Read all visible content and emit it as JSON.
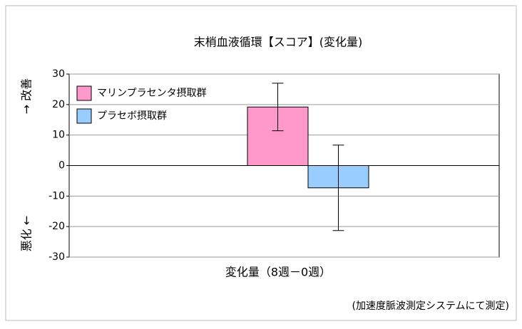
{
  "chart_data": {
    "type": "bar",
    "title": "末梢血液循環【スコア】(変化量)",
    "y_label_top": "→ 改善",
    "y_label_bottom": "悪化 ←",
    "note": "(加速度脈波測定システムにて測定)",
    "categories": [
      "変化量（8週－0週）"
    ],
    "series": [
      {
        "name": "マリンプラセンタ摂取群",
        "color": "#ff99cc",
        "values": [
          19.2
        ],
        "errors": [
          7.8
        ]
      },
      {
        "name": "プラセボ摂取群",
        "color": "#99ccff",
        "values": [
          -7.3
        ],
        "errors": [
          14
        ]
      }
    ],
    "ylim": [
      -30,
      30
    ],
    "yticks": [
      -30,
      -20,
      -10,
      0,
      10,
      20,
      30
    ],
    "grid": true,
    "legend": "top-left"
  }
}
